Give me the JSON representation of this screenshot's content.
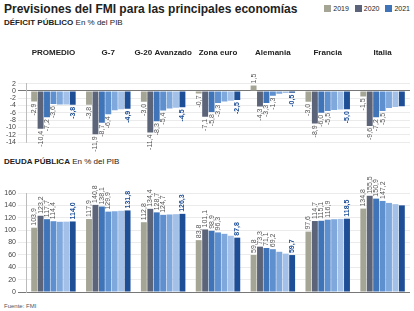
{
  "title": "Previsiones del FMI para las principales economías",
  "source": "Fuente: FMI",
  "chart_data": [
    {
      "type": "bar",
      "title": "DÉFICIT PÚBLICO",
      "subtitle": "En % del PIB",
      "legend": "top-right",
      "grid": true,
      "data_labels": true,
      "categories": [
        "PROMEDIO",
        "G-7",
        "G-20 Avanzado",
        "Zona euro",
        "Alemania",
        "Francia",
        "Italia"
      ],
      "ylim": [
        -14,
        2
      ],
      "yticks": [
        -14,
        -12,
        -10,
        -8,
        -6,
        -4,
        -2,
        0,
        2
      ],
      "series": [
        {
          "name": "2019",
          "color": "#a5a596",
          "values": [
            -2.9,
            -3.8,
            -3.0,
            -0.7,
            1.5,
            -3.0,
            -1.5
          ],
          "value_labels": [
            "-2,9",
            "-3,8",
            "-3,0",
            "-0,7",
            "1,5",
            "-3,0",
            "-1,5"
          ]
        },
        {
          "name": "2020",
          "color": "#5b6478",
          "values": [
            -10.4,
            -11.9,
            -11.4,
            -7.1,
            -4.3,
            -8.9,
            -9.6
          ],
          "value_labels": [
            "-10,4",
            "-11,9",
            "-11,4",
            "-7,1",
            "-4,3",
            "-8,9",
            "-9,6"
          ]
        },
        {
          "name": "2021",
          "color": "#3f74b8",
          "values": [
            -7.2,
            -8.7,
            -8.3,
            -5.8,
            -3.3,
            -6.0,
            -7.2
          ],
          "value_labels": [
            "-7,2",
            "-8,7",
            "-8,3",
            "-5,8",
            "-3,3",
            "-6,0",
            "-7,2"
          ]
        },
        {
          "name": null,
          "color": "#5e8fcf",
          "values": [
            -3.6,
            -6.4,
            -5.4,
            -3.3,
            -1.3,
            -5.5,
            -5.5
          ],
          "value_labels": [
            "-3,6",
            "-6,4",
            "-5,4",
            "-3,3",
            "-1,3",
            "-5,5",
            "-5,5"
          ]
        },
        {
          "name": null,
          "color": "#7fa8dc",
          "values": [
            -3.7,
            -5.3,
            -4.8,
            -2.9,
            -0.8,
            -5.2,
            -4.7
          ]
        },
        {
          "name": null,
          "color": "#a3c1e8",
          "values": [
            -3.7,
            -5.0,
            -4.6,
            -2.7,
            -0.6,
            -5.1,
            -4.4
          ]
        },
        {
          "name": null,
          "color": "#1d4e96",
          "values": [
            -3.8,
            -4.9,
            -4.5,
            -2.5,
            -0.5,
            -5.0,
            -4.2
          ],
          "value_labels": [
            "-3,8",
            "-4,9",
            "-4,5",
            "-2,5",
            "-0,5",
            "-5,0",
            null
          ]
        }
      ]
    },
    {
      "type": "bar",
      "title": "DEUDA PÚBLICA",
      "subtitle": "En % del PIB",
      "grid": true,
      "data_labels": true,
      "tick_labels": "y",
      "categories": [
        "PROMEDIO",
        "G-7",
        "G-20 Avanzado",
        "Zona euro",
        "Alemania",
        "Francia",
        "Italia"
      ],
      "ylim": [
        0,
        160
      ],
      "yticks": [
        0,
        20,
        40,
        60,
        80,
        100,
        120,
        140,
        160
      ],
      "series": [
        {
          "name": "2019",
          "color": "#a5a596",
          "values": [
            103.9,
            117.9,
            112.8,
            83.8,
            59.8,
            97.6,
            134.8
          ],
          "value_labels": [
            "103,9",
            "117,9",
            "112,8",
            "83,8",
            "59,8",
            "97,6",
            "134,8"
          ]
        },
        {
          "name": "2020",
          "color": "#5b6478",
          "values": [
            123.2,
            140.8,
            134.4,
            101.1,
            73.3,
            114.7,
            155.5
          ],
          "value_labels": [
            "123,2",
            "140,8",
            "134,4",
            "101,1",
            "73,3",
            "114,7",
            "155,5"
          ]
        },
        {
          "name": "2021",
          "color": "#3f74b8",
          "values": [
            117.7,
            138.1,
            128.7,
            98.9,
            71.1,
            115.1,
            150.9
          ],
          "value_labels": [
            "117,7",
            "138,1",
            "128,7",
            "98,9",
            "71,1",
            "115,1",
            "150,9"
          ]
        },
        {
          "name": null,
          "color": "#5e8fcf",
          "values": [
            114.4,
            129.9,
            124.7,
            96.3,
            69.2,
            116.9,
            147.2
          ],
          "value_labels": [
            "114,4",
            "129,9",
            "124,7",
            "96,3",
            "69,2",
            "116,9",
            "147,2"
          ]
        },
        {
          "name": null,
          "color": "#7fa8dc",
          "values": [
            113.5,
            130.5,
            125.3,
            94.0,
            65.0,
            117.6,
            144.0
          ]
        },
        {
          "name": null,
          "color": "#a3c1e8",
          "values": [
            113.7,
            131.2,
            125.8,
            90.9,
            62.0,
            118.1,
            142.0
          ]
        },
        {
          "name": null,
          "color": "#1d4e96",
          "values": [
            114.0,
            131.8,
            126.3,
            87.8,
            59.7,
            118.5,
            140.0
          ],
          "value_labels": [
            "114,0",
            "131,8",
            "126,3",
            "87,8",
            "59,7",
            "118,5",
            null
          ]
        }
      ]
    }
  ]
}
